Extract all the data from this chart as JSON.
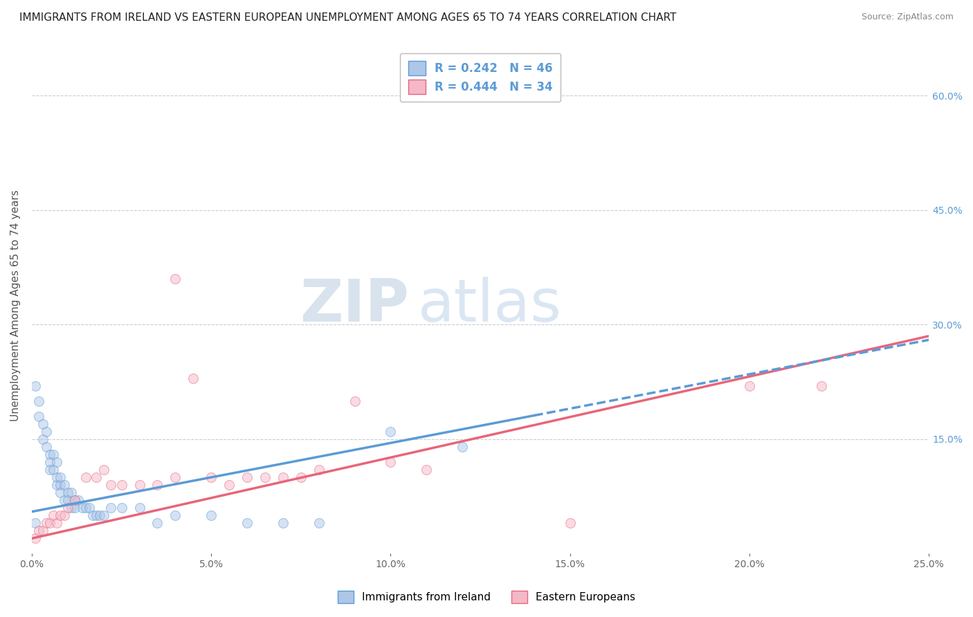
{
  "title": "IMMIGRANTS FROM IRELAND VS EASTERN EUROPEAN UNEMPLOYMENT AMONG AGES 65 TO 74 YEARS CORRELATION CHART",
  "source": "Source: ZipAtlas.com",
  "ylabel": "Unemployment Among Ages 65 to 74 years",
  "xlim": [
    0.0,
    0.25
  ],
  "ylim": [
    0.0,
    0.65
  ],
  "xticks": [
    0.0,
    0.05,
    0.1,
    0.15,
    0.2,
    0.25
  ],
  "xtick_labels": [
    "0.0%",
    "5.0%",
    "10.0%",
    "15.0%",
    "20.0%",
    "25.0%"
  ],
  "ytick_positions": [
    0.0,
    0.15,
    0.3,
    0.45,
    0.6
  ],
  "ytick_labels": [
    "",
    "15.0%",
    "30.0%",
    "45.0%",
    "60.0%"
  ],
  "legend_entries": [
    {
      "label": "Immigrants from Ireland",
      "color": "#aec6e8"
    },
    {
      "label": "Eastern Europeans",
      "color": "#f4a7b9"
    }
  ],
  "R_blue": 0.242,
  "N_blue": 46,
  "R_pink": 0.444,
  "N_pink": 34,
  "blue_scatter": [
    [
      0.001,
      0.22
    ],
    [
      0.002,
      0.2
    ],
    [
      0.002,
      0.18
    ],
    [
      0.003,
      0.17
    ],
    [
      0.003,
      0.15
    ],
    [
      0.004,
      0.16
    ],
    [
      0.004,
      0.14
    ],
    [
      0.005,
      0.13
    ],
    [
      0.005,
      0.12
    ],
    [
      0.005,
      0.11
    ],
    [
      0.006,
      0.13
    ],
    [
      0.006,
      0.11
    ],
    [
      0.007,
      0.1
    ],
    [
      0.007,
      0.09
    ],
    [
      0.007,
      0.12
    ],
    [
      0.008,
      0.09
    ],
    [
      0.008,
      0.08
    ],
    [
      0.008,
      0.1
    ],
    [
      0.009,
      0.09
    ],
    [
      0.009,
      0.07
    ],
    [
      0.01,
      0.08
    ],
    [
      0.01,
      0.07
    ],
    [
      0.011,
      0.08
    ],
    [
      0.011,
      0.06
    ],
    [
      0.012,
      0.07
    ],
    [
      0.012,
      0.06
    ],
    [
      0.013,
      0.07
    ],
    [
      0.014,
      0.06
    ],
    [
      0.015,
      0.06
    ],
    [
      0.016,
      0.06
    ],
    [
      0.017,
      0.05
    ],
    [
      0.018,
      0.05
    ],
    [
      0.019,
      0.05
    ],
    [
      0.02,
      0.05
    ],
    [
      0.022,
      0.06
    ],
    [
      0.025,
      0.06
    ],
    [
      0.03,
      0.06
    ],
    [
      0.035,
      0.04
    ],
    [
      0.04,
      0.05
    ],
    [
      0.05,
      0.05
    ],
    [
      0.06,
      0.04
    ],
    [
      0.07,
      0.04
    ],
    [
      0.08,
      0.04
    ],
    [
      0.1,
      0.16
    ],
    [
      0.12,
      0.14
    ],
    [
      0.001,
      0.04
    ]
  ],
  "pink_scatter": [
    [
      0.001,
      0.02
    ],
    [
      0.002,
      0.03
    ],
    [
      0.003,
      0.03
    ],
    [
      0.004,
      0.04
    ],
    [
      0.005,
      0.04
    ],
    [
      0.006,
      0.05
    ],
    [
      0.007,
      0.04
    ],
    [
      0.008,
      0.05
    ],
    [
      0.009,
      0.05
    ],
    [
      0.01,
      0.06
    ],
    [
      0.012,
      0.07
    ],
    [
      0.015,
      0.1
    ],
    [
      0.018,
      0.1
    ],
    [
      0.02,
      0.11
    ],
    [
      0.022,
      0.09
    ],
    [
      0.025,
      0.09
    ],
    [
      0.03,
      0.09
    ],
    [
      0.035,
      0.09
    ],
    [
      0.04,
      0.1
    ],
    [
      0.04,
      0.36
    ],
    [
      0.045,
      0.23
    ],
    [
      0.05,
      0.1
    ],
    [
      0.055,
      0.09
    ],
    [
      0.06,
      0.1
    ],
    [
      0.065,
      0.1
    ],
    [
      0.07,
      0.1
    ],
    [
      0.075,
      0.1
    ],
    [
      0.08,
      0.11
    ],
    [
      0.09,
      0.2
    ],
    [
      0.1,
      0.12
    ],
    [
      0.11,
      0.11
    ],
    [
      0.15,
      0.04
    ],
    [
      0.2,
      0.22
    ],
    [
      0.22,
      0.22
    ]
  ],
  "blue_line": {
    "x0": 0.0,
    "y0": 0.055,
    "x1": 0.25,
    "y1": 0.28
  },
  "pink_line": {
    "x0": 0.0,
    "y0": 0.02,
    "x1": 0.25,
    "y1": 0.285
  },
  "background_color": "#ffffff",
  "grid_color": "#cccccc",
  "title_fontsize": 11,
  "axis_label_fontsize": 11,
  "tick_fontsize": 10,
  "scatter_alpha": 0.5,
  "scatter_size": 100
}
